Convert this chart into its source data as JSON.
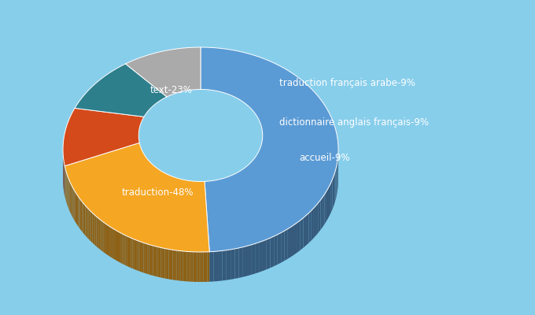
{
  "labels": [
    "traduction-48%",
    "text-23%",
    "traduction français arabe-9%",
    "dictionnaire anglais français-9%",
    "accueil-9%"
  ],
  "values": [
    48,
    23,
    9,
    9,
    9
  ],
  "colors": [
    "#5B9BD5",
    "#F5A623",
    "#D44A1A",
    "#2E7F8C",
    "#AAAAAA"
  ],
  "background_color": "#87CEEB",
  "text_color": "#FFFFFF",
  "shadow_color": "#2E5F9A"
}
